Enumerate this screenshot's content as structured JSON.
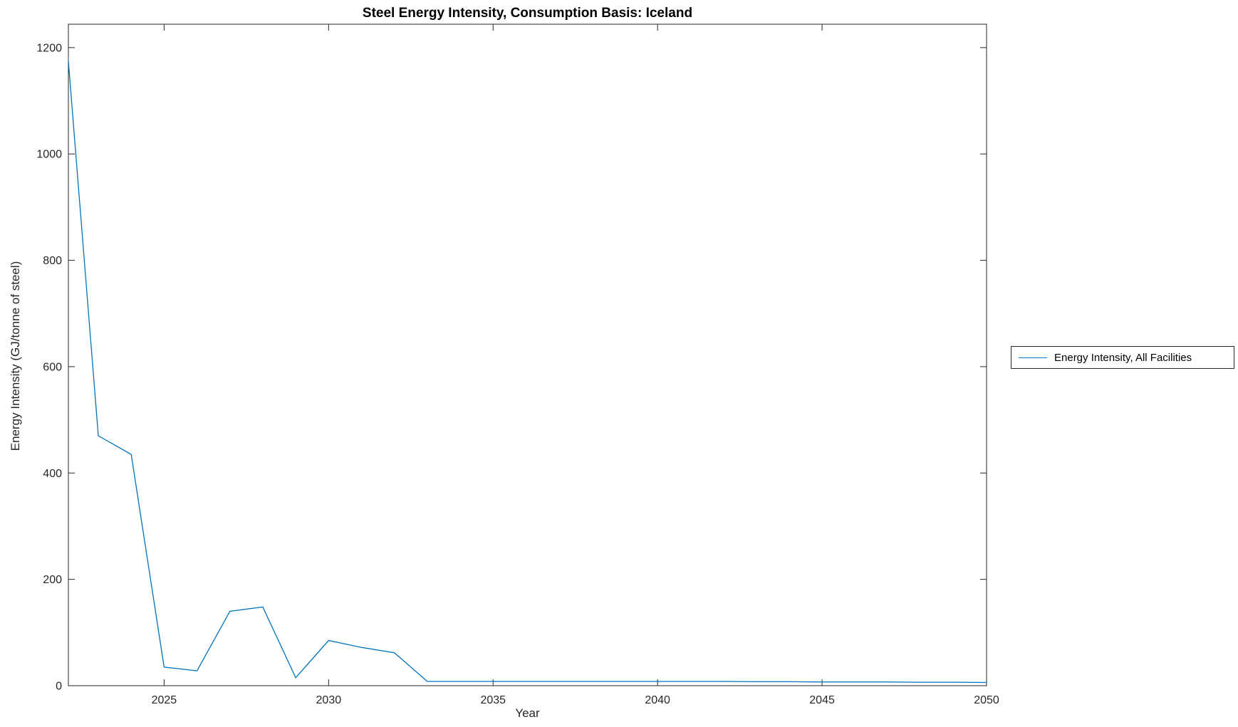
{
  "chart_data": {
    "type": "line",
    "title": "Steel Energy Intensity, Consumption Basis: Iceland",
    "xlabel": "Year",
    "ylabel": "Energy Intensity (GJ/tonne of steel)",
    "legend_position": "right-outside",
    "grid": false,
    "line_color": "#0072BD",
    "axis_color": "#262626",
    "xlim": [
      2022.09,
      2050
    ],
    "ylim": [
      0,
      1244
    ],
    "xticks": [
      2025,
      2030,
      2035,
      2040,
      2045,
      2050
    ],
    "yticks": [
      0,
      200,
      400,
      600,
      800,
      1000,
      1200
    ],
    "x": [
      2022,
      2023,
      2024,
      2025,
      2026,
      2027,
      2028,
      2029,
      2030,
      2031,
      2032,
      2033,
      2034,
      2035,
      2036,
      2037,
      2038,
      2039,
      2040,
      2041,
      2042,
      2043,
      2044,
      2045,
      2046,
      2047,
      2048,
      2049,
      2050
    ],
    "series": [
      {
        "name": "Energy Intensity, All Facilities",
        "values": [
          1244,
          470,
          435,
          35,
          28,
          140,
          148,
          15,
          85,
          72,
          62,
          8,
          8,
          8,
          8,
          8,
          8,
          8,
          8,
          8,
          8,
          7.5,
          7.5,
          7,
          7,
          7,
          6.5,
          6.5,
          6
        ]
      }
    ]
  }
}
